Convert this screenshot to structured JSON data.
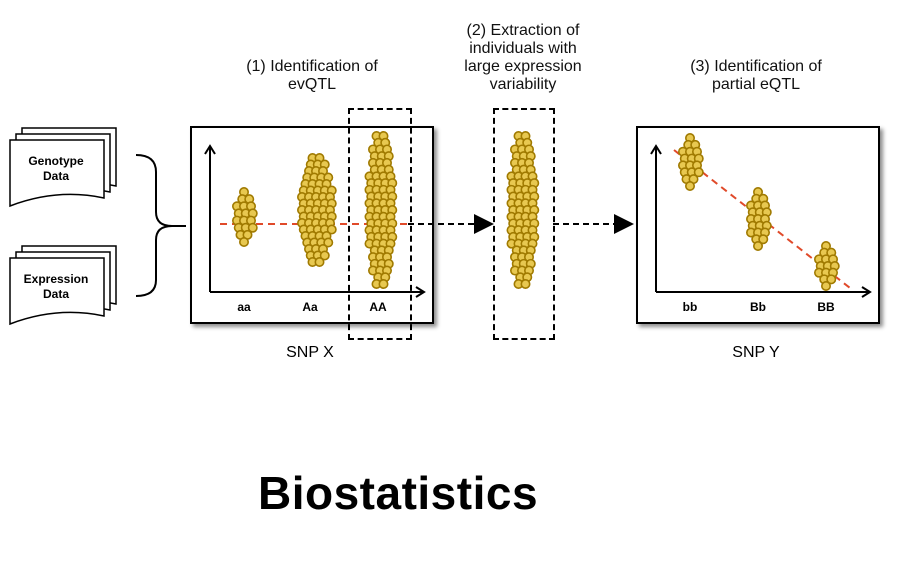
{
  "inputs": {
    "genotype": [
      "Genotype",
      "Data"
    ],
    "expression": [
      "Expression",
      "Data"
    ]
  },
  "steps": {
    "step1": [
      "(1) Identification of",
      "evQTL"
    ],
    "step2": [
      "(2) Extraction of",
      "individuals with",
      "large expression",
      "variability"
    ],
    "step3": [
      "(3) Identification of",
      "partial eQTL"
    ]
  },
  "panel_x": {
    "snp_label": "SNP X",
    "genotypes": [
      "aa",
      "Aa",
      "AA"
    ]
  },
  "panel_y": {
    "snp_label": "SNP Y",
    "genotypes": [
      "bb",
      "Bb",
      "BB"
    ]
  },
  "footer_title": "Biostatistics",
  "colors": {
    "dot_fill": "#e8c850",
    "dot_stroke": "#a07a00",
    "trend_line": "#e04a2a",
    "extracted_fill": "#e0b070"
  }
}
